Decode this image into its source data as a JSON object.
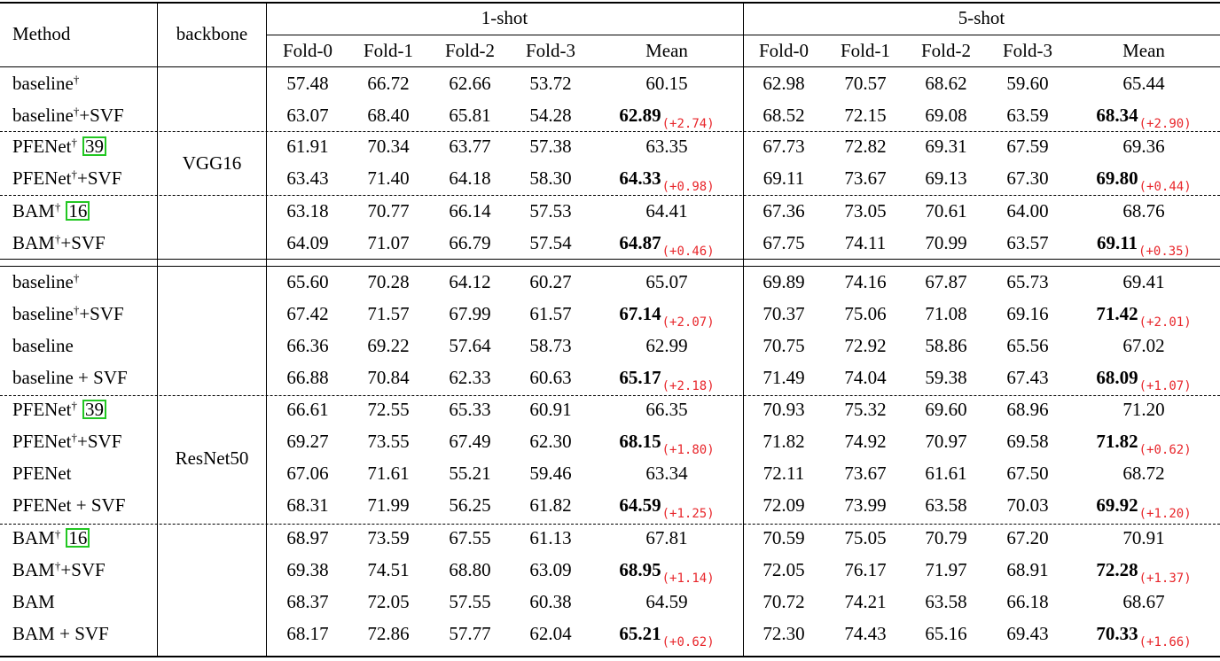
{
  "header": {
    "method": "Method",
    "backbone": "backbone",
    "shot1": "1-shot",
    "shot5": "5-shot",
    "folds": [
      "Fold-0",
      "Fold-1",
      "Fold-2",
      "Fold-3",
      "Mean"
    ]
  },
  "rows": [
    {
      "method": "baseline",
      "dagger": "†",
      "cite": "",
      "suffix": "",
      "s1": [
        "57.48",
        "66.72",
        "62.66",
        "53.72"
      ],
      "m1": "60.15",
      "d1": "",
      "s5": [
        "62.98",
        "70.57",
        "68.62",
        "59.60"
      ],
      "m5": "65.44",
      "d5": "",
      "bold": false
    },
    {
      "method": "baseline",
      "dagger": "†",
      "cite": "",
      "suffix": "+SVF",
      "s1": [
        "63.07",
        "68.40",
        "65.81",
        "54.28"
      ],
      "m1": "62.89",
      "d1": "(+2.74)",
      "s5": [
        "68.52",
        "72.15",
        "69.08",
        "63.59"
      ],
      "m5": "68.34",
      "d5": "(+2.90)",
      "bold": true
    },
    {
      "method": "PFENet",
      "dagger": "†",
      "cite": "39",
      "suffix": "",
      "s1": [
        "61.91",
        "70.34",
        "63.77",
        "57.38"
      ],
      "m1": "63.35",
      "d1": "",
      "s5": [
        "67.73",
        "72.82",
        "69.31",
        "67.59"
      ],
      "m5": "69.36",
      "d5": "",
      "bold": false
    },
    {
      "method": "PFENet",
      "dagger": "†",
      "cite": "",
      "suffix": "+SVF",
      "s1": [
        "63.43",
        "71.40",
        "64.18",
        "58.30"
      ],
      "m1": "64.33",
      "d1": "(+0.98)",
      "s5": [
        "69.11",
        "73.67",
        "69.13",
        "67.30"
      ],
      "m5": "69.80",
      "d5": "(+0.44)",
      "bold": true
    },
    {
      "method": "BAM",
      "dagger": "†",
      "cite": "16",
      "suffix": "",
      "s1": [
        "63.18",
        "70.77",
        "66.14",
        "57.53"
      ],
      "m1": "64.41",
      "d1": "",
      "s5": [
        "67.36",
        "73.05",
        "70.61",
        "64.00"
      ],
      "m5": "68.76",
      "d5": "",
      "bold": false
    },
    {
      "method": "BAM",
      "dagger": "†",
      "cite": "",
      "suffix": "+SVF",
      "s1": [
        "64.09",
        "71.07",
        "66.79",
        "57.54"
      ],
      "m1": "64.87",
      "d1": "(+0.46)",
      "s5": [
        "67.75",
        "74.11",
        "70.99",
        "63.57"
      ],
      "m5": "69.11",
      "d5": "(+0.35)",
      "bold": true
    },
    {
      "method": "baseline",
      "dagger": "†",
      "cite": "",
      "suffix": "",
      "s1": [
        "65.60",
        "70.28",
        "64.12",
        "60.27"
      ],
      "m1": "65.07",
      "d1": "",
      "s5": [
        "69.89",
        "74.16",
        "67.87",
        "65.73"
      ],
      "m5": "69.41",
      "d5": "",
      "bold": false
    },
    {
      "method": "baseline",
      "dagger": "†",
      "cite": "",
      "suffix": "+SVF",
      "s1": [
        "67.42",
        "71.57",
        "67.99",
        "61.57"
      ],
      "m1": "67.14",
      "d1": "(+2.07)",
      "s5": [
        "70.37",
        "75.06",
        "71.08",
        "69.16"
      ],
      "m5": "71.42",
      "d5": "(+2.01)",
      "bold": true
    },
    {
      "method": "baseline",
      "dagger": "",
      "cite": "",
      "suffix": "",
      "s1": [
        "66.36",
        "69.22",
        "57.64",
        "58.73"
      ],
      "m1": "62.99",
      "d1": "",
      "s5": [
        "70.75",
        "72.92",
        "58.86",
        "65.56"
      ],
      "m5": "67.02",
      "d5": "",
      "bold": false
    },
    {
      "method": "baseline + SVF",
      "dagger": "",
      "cite": "",
      "suffix": "",
      "s1": [
        "66.88",
        "70.84",
        "62.33",
        "60.63"
      ],
      "m1": "65.17",
      "d1": "(+2.18)",
      "s5": [
        "71.49",
        "74.04",
        "59.38",
        "67.43"
      ],
      "m5": "68.09",
      "d5": "(+1.07)",
      "bold": true
    },
    {
      "method": "PFENet",
      "dagger": "†",
      "cite": "39",
      "suffix": "",
      "s1": [
        "66.61",
        "72.55",
        "65.33",
        "60.91"
      ],
      "m1": "66.35",
      "d1": "",
      "s5": [
        "70.93",
        "75.32",
        "69.60",
        "68.96"
      ],
      "m5": "71.20",
      "d5": "",
      "bold": false
    },
    {
      "method": "PFENet",
      "dagger": "†",
      "cite": "",
      "suffix": "+SVF",
      "s1": [
        "69.27",
        "73.55",
        "67.49",
        "62.30"
      ],
      "m1": "68.15",
      "d1": "(+1.80)",
      "s5": [
        "71.82",
        "74.92",
        "70.97",
        "69.58"
      ],
      "m5": "71.82",
      "d5": "(+0.62)",
      "bold": true
    },
    {
      "method": "PFENet",
      "dagger": "",
      "cite": "",
      "suffix": "",
      "s1": [
        "67.06",
        "71.61",
        "55.21",
        "59.46"
      ],
      "m1": "63.34",
      "d1": "",
      "s5": [
        "72.11",
        "73.67",
        "61.61",
        "67.50"
      ],
      "m5": "68.72",
      "d5": "",
      "bold": false
    },
    {
      "method": "PFENet + SVF",
      "dagger": "",
      "cite": "",
      "suffix": "",
      "s1": [
        "68.31",
        "71.99",
        "56.25",
        "61.82"
      ],
      "m1": "64.59",
      "d1": "(+1.25)",
      "s5": [
        "72.09",
        "73.99",
        "63.58",
        "70.03"
      ],
      "m5": "69.92",
      "d5": "(+1.20)",
      "bold": true
    },
    {
      "method": "BAM",
      "dagger": "†",
      "cite": "16",
      "suffix": "",
      "s1": [
        "68.97",
        "73.59",
        "67.55",
        "61.13"
      ],
      "m1": "67.81",
      "d1": "",
      "s5": [
        "70.59",
        "75.05",
        "70.79",
        "67.20"
      ],
      "m5": "70.91",
      "d5": "",
      "bold": false
    },
    {
      "method": "BAM",
      "dagger": "†",
      "cite": "",
      "suffix": "+SVF",
      "s1": [
        "69.38",
        "74.51",
        "68.80",
        "63.09"
      ],
      "m1": "68.95",
      "d1": "(+1.14)",
      "s5": [
        "72.05",
        "76.17",
        "71.97",
        "68.91"
      ],
      "m5": "72.28",
      "d5": "(+1.37)",
      "bold": true
    },
    {
      "method": "BAM",
      "dagger": "",
      "cite": "",
      "suffix": "",
      "s1": [
        "68.37",
        "72.05",
        "57.55",
        "60.38"
      ],
      "m1": "64.59",
      "d1": "",
      "s5": [
        "70.72",
        "74.21",
        "63.58",
        "66.18"
      ],
      "m5": "68.67",
      "d5": "",
      "bold": false
    },
    {
      "method": "BAM + SVF",
      "dagger": "",
      "cite": "",
      "suffix": "",
      "s1": [
        "68.17",
        "72.86",
        "57.77",
        "62.04"
      ],
      "m1": "65.21",
      "d1": "(+0.62)",
      "s5": [
        "72.30",
        "74.43",
        "65.16",
        "69.43"
      ],
      "m5": "70.33",
      "d5": "(+1.66)",
      "bold": true
    }
  ],
  "backbones": [
    {
      "label": "VGG16"
    },
    {
      "label": "ResNet50"
    }
  ],
  "colors": {
    "delta": "#e8262b",
    "cite_border": "#22c722"
  }
}
